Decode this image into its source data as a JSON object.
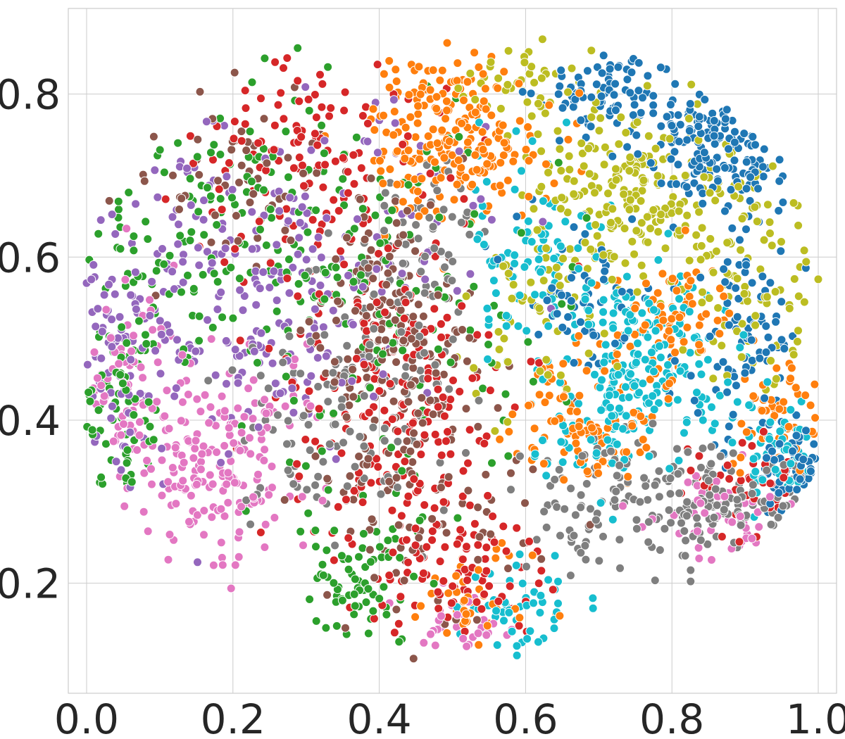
{
  "chart_data": {
    "type": "scatter",
    "title": "",
    "xlabel": "",
    "ylabel": "",
    "xlim": [
      -0.025,
      1.025
    ],
    "ylim": [
      0.065,
      0.905
    ],
    "grid": true,
    "legend": "none",
    "x_ticks": [
      {
        "value": 0.0,
        "label": "0.0"
      },
      {
        "value": 0.2,
        "label": "0.2"
      },
      {
        "value": 0.4,
        "label": "0.4"
      },
      {
        "value": 0.6,
        "label": "0.6"
      },
      {
        "value": 0.8,
        "label": "0.8"
      },
      {
        "value": 1.0,
        "label": "1.0"
      }
    ],
    "y_ticks": [
      {
        "value": 0.2,
        "label": "0.2"
      },
      {
        "value": 0.4,
        "label": "0.4"
      },
      {
        "value": 0.6,
        "label": "0.6"
      },
      {
        "value": 0.8,
        "label": "0.8"
      }
    ],
    "series": [
      {
        "color": "#1f77b4",
        "clusters": [
          {
            "x": 0.86,
            "y": 0.74,
            "sx": 0.05,
            "sy": 0.04,
            "n": 160
          },
          {
            "x": 0.72,
            "y": 0.8,
            "sx": 0.05,
            "sy": 0.025,
            "n": 90
          },
          {
            "x": 0.9,
            "y": 0.5,
            "sx": 0.04,
            "sy": 0.08,
            "n": 90
          },
          {
            "x": 0.97,
            "y": 0.34,
            "sx": 0.025,
            "sy": 0.03,
            "n": 60
          },
          {
            "x": 0.68,
            "y": 0.56,
            "sx": 0.05,
            "sy": 0.05,
            "n": 60
          }
        ]
      },
      {
        "color": "#ff7f0e",
        "clusters": [
          {
            "x": 0.5,
            "y": 0.75,
            "sx": 0.06,
            "sy": 0.05,
            "n": 230
          },
          {
            "x": 0.68,
            "y": 0.4,
            "sx": 0.05,
            "sy": 0.04,
            "n": 100
          },
          {
            "x": 0.8,
            "y": 0.52,
            "sx": 0.05,
            "sy": 0.04,
            "n": 80
          },
          {
            "x": 0.95,
            "y": 0.4,
            "sx": 0.03,
            "sy": 0.04,
            "n": 50
          },
          {
            "x": 0.53,
            "y": 0.18,
            "sx": 0.04,
            "sy": 0.03,
            "n": 40
          }
        ]
      },
      {
        "color": "#2ca02c",
        "clusters": [
          {
            "x": 0.22,
            "y": 0.62,
            "sx": 0.1,
            "sy": 0.1,
            "n": 160
          },
          {
            "x": 0.05,
            "y": 0.45,
            "sx": 0.03,
            "sy": 0.08,
            "n": 80
          },
          {
            "x": 0.37,
            "y": 0.2,
            "sx": 0.04,
            "sy": 0.04,
            "n": 70
          },
          {
            "x": 0.45,
            "y": 0.5,
            "sx": 0.12,
            "sy": 0.15,
            "n": 90
          }
        ]
      },
      {
        "color": "#d62728",
        "clusters": [
          {
            "x": 0.3,
            "y": 0.72,
            "sx": 0.08,
            "sy": 0.06,
            "n": 120
          },
          {
            "x": 0.42,
            "y": 0.42,
            "sx": 0.08,
            "sy": 0.12,
            "n": 220
          },
          {
            "x": 0.52,
            "y": 0.22,
            "sx": 0.05,
            "sy": 0.05,
            "n": 80
          },
          {
            "x": 0.9,
            "y": 0.3,
            "sx": 0.06,
            "sy": 0.04,
            "n": 40
          }
        ]
      },
      {
        "color": "#9467bd",
        "clusters": [
          {
            "x": 0.2,
            "y": 0.55,
            "sx": 0.1,
            "sy": 0.1,
            "n": 200
          },
          {
            "x": 0.04,
            "y": 0.5,
            "sx": 0.03,
            "sy": 0.08,
            "n": 60
          },
          {
            "x": 0.4,
            "y": 0.6,
            "sx": 0.1,
            "sy": 0.1,
            "n": 60
          }
        ]
      },
      {
        "color": "#8c564b",
        "clusters": [
          {
            "x": 0.42,
            "y": 0.5,
            "sx": 0.05,
            "sy": 0.08,
            "n": 180
          },
          {
            "x": 0.2,
            "y": 0.7,
            "sx": 0.08,
            "sy": 0.06,
            "n": 60
          },
          {
            "x": 0.48,
            "y": 0.3,
            "sx": 0.08,
            "sy": 0.08,
            "n": 80
          }
        ]
      },
      {
        "color": "#e377c2",
        "clusters": [
          {
            "x": 0.17,
            "y": 0.35,
            "sx": 0.06,
            "sy": 0.07,
            "n": 200
          },
          {
            "x": 0.05,
            "y": 0.47,
            "sx": 0.03,
            "sy": 0.06,
            "n": 60
          },
          {
            "x": 0.9,
            "y": 0.28,
            "sx": 0.06,
            "sy": 0.03,
            "n": 50
          },
          {
            "x": 0.5,
            "y": 0.15,
            "sx": 0.04,
            "sy": 0.02,
            "n": 30
          }
        ]
      },
      {
        "color": "#7f7f7f",
        "clusters": [
          {
            "x": 0.36,
            "y": 0.42,
            "sx": 0.07,
            "sy": 0.08,
            "n": 140
          },
          {
            "x": 0.75,
            "y": 0.3,
            "sx": 0.08,
            "sy": 0.04,
            "n": 150
          },
          {
            "x": 0.92,
            "y": 0.3,
            "sx": 0.05,
            "sy": 0.03,
            "n": 60
          },
          {
            "x": 0.45,
            "y": 0.62,
            "sx": 0.05,
            "sy": 0.04,
            "n": 60
          }
        ]
      },
      {
        "color": "#bcbd22",
        "clusters": [
          {
            "x": 0.75,
            "y": 0.68,
            "sx": 0.07,
            "sy": 0.05,
            "n": 200
          },
          {
            "x": 0.9,
            "y": 0.6,
            "sx": 0.05,
            "sy": 0.08,
            "n": 100
          },
          {
            "x": 0.62,
            "y": 0.55,
            "sx": 0.05,
            "sy": 0.06,
            "n": 60
          },
          {
            "x": 0.6,
            "y": 0.82,
            "sx": 0.04,
            "sy": 0.02,
            "n": 40
          }
        ]
      },
      {
        "color": "#17becf",
        "clusters": [
          {
            "x": 0.77,
            "y": 0.48,
            "sx": 0.06,
            "sy": 0.05,
            "n": 180
          },
          {
            "x": 0.6,
            "y": 0.6,
            "sx": 0.05,
            "sy": 0.06,
            "n": 90
          },
          {
            "x": 0.95,
            "y": 0.36,
            "sx": 0.03,
            "sy": 0.04,
            "n": 50
          },
          {
            "x": 0.59,
            "y": 0.17,
            "sx": 0.04,
            "sy": 0.03,
            "n": 50
          },
          {
            "x": 0.7,
            "y": 0.38,
            "sx": 0.05,
            "sy": 0.03,
            "n": 60
          }
        ]
      }
    ]
  }
}
